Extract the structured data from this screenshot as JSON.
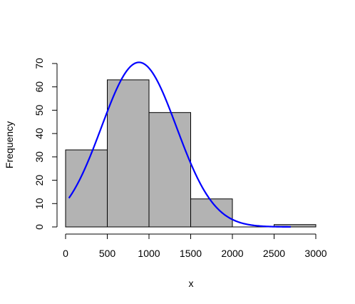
{
  "chart_data": {
    "type": "histogram",
    "title": "",
    "xlabel": "x",
    "ylabel": "Frequency",
    "bins": [
      {
        "from": 0,
        "to": 500,
        "count": 33
      },
      {
        "from": 500,
        "to": 1000,
        "count": 63
      },
      {
        "from": 1000,
        "to": 1500,
        "count": 49
      },
      {
        "from": 1500,
        "to": 2000,
        "count": 12
      },
      {
        "from": 2000,
        "to": 2500,
        "count": 0
      },
      {
        "from": 2500,
        "to": 3000,
        "count": 1
      }
    ],
    "xlim": [
      0,
      3000
    ],
    "ylim": [
      0,
      70
    ],
    "xticks": [
      "0",
      "500",
      "1000",
      "1500",
      "2000",
      "2500",
      "3000"
    ],
    "yticks": [
      "0",
      "10",
      "20",
      "30",
      "40",
      "50",
      "60",
      "70"
    ],
    "overlay_curve": {
      "type": "normal-density",
      "color": "#0000ff",
      "mean": 880,
      "sd": 450,
      "peak": 70.5,
      "x_range": [
        40,
        2700
      ]
    },
    "bar_fill": "#b3b3b3",
    "grid": false
  }
}
